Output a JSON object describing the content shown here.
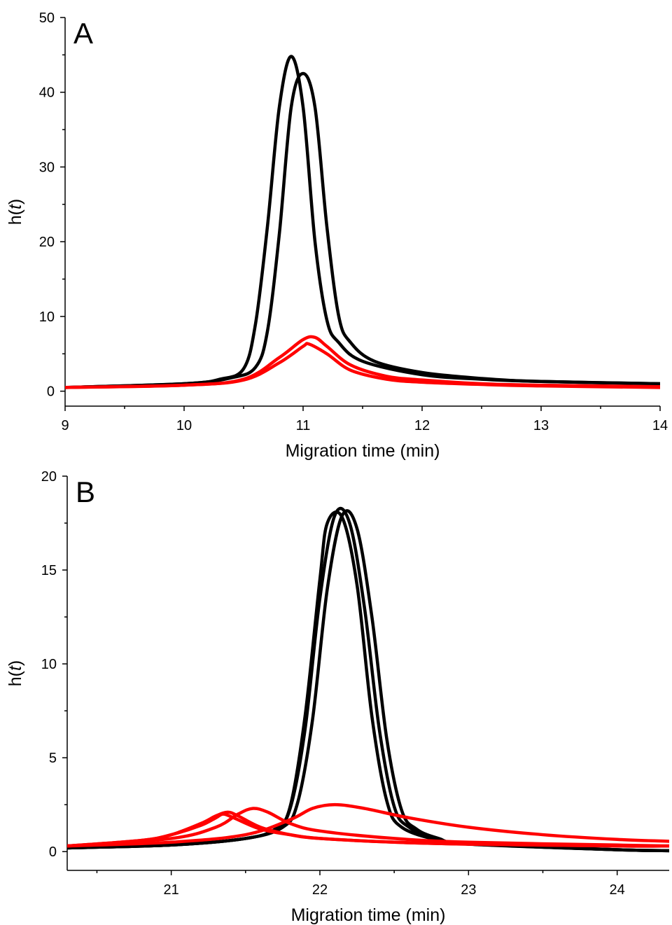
{
  "chart_data": [
    {
      "type": "line",
      "panel_label": "A",
      "xlabel": "Migration time (min)",
      "ylabel_base": "h(",
      "ylabel_var": "t",
      "ylabel_end": ")",
      "xlim": [
        9,
        14
      ],
      "ylim": [
        -2,
        50
      ],
      "x_ticks": [
        9,
        10,
        11,
        12,
        13,
        14
      ],
      "y_ticks": [
        0,
        10,
        20,
        30,
        40,
        50
      ],
      "x_ticks_minor": [
        9.5,
        10.5,
        11.5,
        12.5,
        13.5
      ],
      "y_ticks_minor": [
        5,
        15,
        25,
        35,
        45
      ],
      "series": [
        {
          "color": "#000000",
          "x": [
            9,
            10,
            10.3,
            10.5,
            10.6,
            10.7,
            10.8,
            10.9,
            11.0,
            11.1,
            11.2,
            11.3,
            11.5,
            12,
            12.5,
            13,
            14
          ],
          "y": [
            0.5,
            1.0,
            1.6,
            3.0,
            9,
            22,
            38,
            44.8,
            38,
            20,
            9.5,
            6.5,
            4.0,
            2.2,
            1.6,
            1.3,
            1.0
          ]
        },
        {
          "color": "#000000",
          "x": [
            9,
            10,
            10.4,
            10.6,
            10.7,
            10.8,
            10.9,
            11.0,
            11.1,
            11.2,
            11.3,
            11.4,
            11.6,
            12,
            12.5,
            13,
            14
          ],
          "y": [
            0.5,
            1.0,
            1.8,
            3.2,
            8,
            21,
            38,
            42.5,
            38,
            22,
            10,
            6.5,
            4.0,
            2.5,
            1.7,
            1.3,
            1.0
          ]
        },
        {
          "color": "#ff0000",
          "x": [
            9,
            10,
            10.5,
            10.8,
            11.0,
            11.1,
            11.2,
            11.4,
            11.7,
            12,
            12.5,
            13,
            14
          ],
          "y": [
            0.5,
            0.8,
            1.6,
            4.5,
            6.9,
            7.2,
            6.0,
            3.5,
            2.0,
            1.5,
            1.0,
            0.8,
            0.6
          ]
        },
        {
          "color": "#ff0000",
          "x": [
            9,
            10,
            10.5,
            10.8,
            11.0,
            11.05,
            11.2,
            11.4,
            11.7,
            12,
            12.5,
            13,
            14
          ],
          "y": [
            0.5,
            0.8,
            1.5,
            3.8,
            6.0,
            6.3,
            5.0,
            2.8,
            1.6,
            1.2,
            0.9,
            0.7,
            0.5
          ]
        }
      ]
    },
    {
      "type": "line",
      "panel_label": "B",
      "xlabel": "Migration time (min)",
      "ylabel_base": "h(",
      "ylabel_var": "t",
      "ylabel_end": ")",
      "xlim": [
        20.3,
        24.35
      ],
      "ylim": [
        -1,
        20
      ],
      "x_ticks": [
        21,
        22,
        23,
        24
      ],
      "y_ticks": [
        0,
        5,
        10,
        15,
        20
      ],
      "x_ticks_minor": [
        20.5,
        21.5,
        22.5,
        23.5
      ],
      "y_ticks_minor": [
        2.5,
        7.5,
        12.5,
        17.5
      ],
      "series": [
        {
          "color": "#000000",
          "x": [
            20.3,
            21,
            21.5,
            21.7,
            21.8,
            21.9,
            22.0,
            22.1,
            22.2,
            22.3,
            22.4,
            22.5,
            22.6,
            22.8,
            23,
            24,
            24.35
          ],
          "y": [
            0.2,
            0.35,
            0.7,
            1.2,
            2.3,
            6.5,
            13.5,
            17.9,
            17.5,
            13,
            6.5,
            2.4,
            1.3,
            0.6,
            0.4,
            0.1,
            0.05
          ]
        },
        {
          "color": "#000000",
          "x": [
            20.3,
            21,
            21.5,
            21.7,
            21.8,
            21.9,
            22.0,
            22.05,
            22.15,
            22.25,
            22.35,
            22.45,
            22.55,
            22.8,
            23,
            24,
            24.35
          ],
          "y": [
            0.2,
            0.35,
            0.7,
            1.2,
            2.4,
            7.2,
            14.5,
            17.5,
            17.8,
            14.2,
            7.2,
            2.7,
            1.3,
            0.6,
            0.4,
            0.1,
            0.05
          ]
        },
        {
          "color": "#000000",
          "x": [
            20.3,
            21,
            21.5,
            21.75,
            21.85,
            21.95,
            22.05,
            22.15,
            22.25,
            22.35,
            22.45,
            22.55,
            22.65,
            22.8,
            23,
            24,
            24.35
          ],
          "y": [
            0.2,
            0.35,
            0.7,
            1.3,
            2.6,
            7.0,
            14.0,
            17.9,
            17.2,
            12.5,
            6.0,
            2.2,
            1.2,
            0.7,
            0.4,
            0.1,
            0.05
          ]
        },
        {
          "color": "#ff0000",
          "x": [
            20.3,
            20.8,
            21.0,
            21.2,
            21.3,
            21.38,
            21.45,
            21.6,
            21.8,
            22.0,
            22.5,
            23,
            24,
            24.35
          ],
          "y": [
            0.3,
            0.6,
            0.9,
            1.5,
            1.9,
            2.1,
            1.9,
            1.3,
            0.9,
            0.7,
            0.5,
            0.4,
            0.3,
            0.3
          ]
        },
        {
          "color": "#ff0000",
          "x": [
            20.3,
            20.8,
            21.0,
            21.2,
            21.3,
            21.35,
            21.42,
            21.6,
            21.8,
            22.0,
            22.5,
            23,
            24,
            24.35
          ],
          "y": [
            0.3,
            0.6,
            0.9,
            1.4,
            1.8,
            2.0,
            1.8,
            1.2,
            0.9,
            0.7,
            0.5,
            0.4,
            0.3,
            0.3
          ]
        },
        {
          "color": "#ff0000",
          "x": [
            20.3,
            21.0,
            21.3,
            21.45,
            21.55,
            21.65,
            21.8,
            22.0,
            22.5,
            23,
            24,
            24.35
          ],
          "y": [
            0.3,
            0.7,
            1.3,
            2.0,
            2.3,
            2.1,
            1.5,
            1.1,
            0.7,
            0.5,
            0.35,
            0.3
          ]
        },
        {
          "color": "#ff0000",
          "x": [
            20.3,
            21.0,
            21.5,
            21.8,
            21.95,
            22.1,
            22.3,
            22.6,
            23.0,
            23.5,
            24.0,
            24.35
          ],
          "y": [
            0.3,
            0.5,
            0.9,
            1.7,
            2.3,
            2.5,
            2.3,
            1.8,
            1.3,
            0.9,
            0.65,
            0.55
          ]
        }
      ]
    }
  ]
}
